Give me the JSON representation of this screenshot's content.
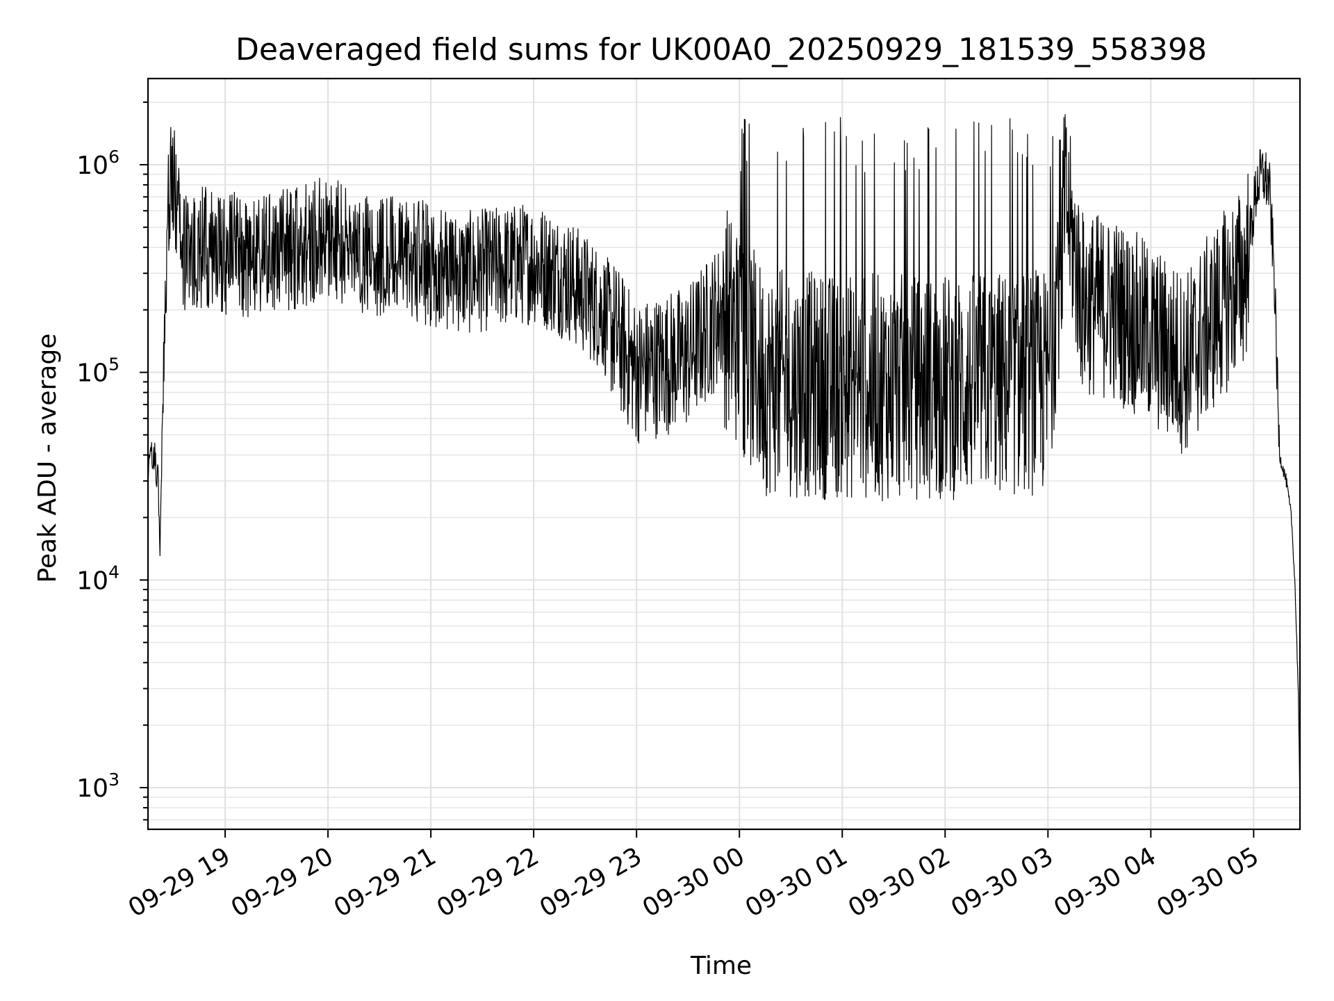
{
  "chart_data": {
    "type": "line",
    "title": "Deaveraged field sums for UK00A0_20250929_181539_558398",
    "xlabel": "Time",
    "ylabel": "Peak ADU - average",
    "yscale": "log",
    "xlim": [
      "2025-09-29 18:15",
      "2025-09-30 05:27"
    ],
    "ylim": [
      630,
      2600000
    ],
    "grid": "on (major and minor)",
    "legend": "none",
    "x_ticks": [
      {
        "t": "2025-09-29 19:00",
        "label": "09-29 19"
      },
      {
        "t": "2025-09-29 20:00",
        "label": "09-29 20"
      },
      {
        "t": "2025-09-29 21:00",
        "label": "09-29 21"
      },
      {
        "t": "2025-09-29 22:00",
        "label": "09-29 22"
      },
      {
        "t": "2025-09-29 23:00",
        "label": "09-29 23"
      },
      {
        "t": "2025-09-30 00:00",
        "label": "09-30 00"
      },
      {
        "t": "2025-09-30 01:00",
        "label": "09-30 01"
      },
      {
        "t": "2025-09-30 02:00",
        "label": "09-30 02"
      },
      {
        "t": "2025-09-30 03:00",
        "label": "09-30 03"
      },
      {
        "t": "2025-09-30 04:00",
        "label": "09-30 04"
      },
      {
        "t": "2025-09-30 05:00",
        "label": "09-30 05"
      }
    ],
    "y_ticks": [
      {
        "value": 1000,
        "base": "10",
        "exp": "3"
      },
      {
        "value": 10000,
        "base": "10",
        "exp": "4"
      },
      {
        "value": 100000,
        "base": "10",
        "exp": "5"
      },
      {
        "value": 1000000,
        "base": "10",
        "exp": "6"
      }
    ],
    "series": [
      {
        "color": "#000000",
        "points": [
          [
            "2025-09-29 18:15",
            35000
          ],
          [
            "2025-09-29 18:17",
            40000
          ],
          [
            "2025-09-29 18:19",
            38000
          ],
          [
            "2025-09-29 18:21",
            30000
          ],
          [
            "2025-09-29 18:22",
            15000
          ],
          [
            "2025-09-29 18:23",
            40000
          ],
          [
            "2025-09-29 18:24",
            80000
          ],
          [
            "2025-09-29 18:26",
            300000
          ],
          [
            "2025-09-29 18:27",
            750000
          ],
          [
            "2025-09-29 18:29",
            900000
          ],
          [
            "2025-09-29 18:31",
            700000
          ],
          [
            "2025-09-29 18:33",
            500000
          ],
          [
            "2025-09-29 18:36",
            350000
          ],
          [
            "2025-09-29 18:40",
            380000
          ],
          [
            "2025-09-29 18:45",
            400000
          ],
          [
            "2025-09-29 19:00",
            380000
          ],
          [
            "2025-09-29 19:20",
            350000
          ],
          [
            "2025-09-29 19:40",
            400000
          ],
          [
            "2025-09-29 20:00",
            450000
          ],
          [
            "2025-09-29 20:20",
            380000
          ],
          [
            "2025-09-29 20:40",
            360000
          ],
          [
            "2025-09-29 21:00",
            330000
          ],
          [
            "2025-09-29 21:20",
            300000
          ],
          [
            "2025-09-29 21:40",
            320000
          ],
          [
            "2025-09-29 22:00",
            340000
          ],
          [
            "2025-09-29 22:20",
            280000
          ],
          [
            "2025-09-29 22:40",
            200000
          ],
          [
            "2025-09-29 23:00",
            100000
          ],
          [
            "2025-09-29 23:30",
            120000
          ],
          [
            "2025-09-29 23:50",
            200000
          ],
          [
            "2025-09-30 00:15",
            90000
          ],
          [
            "2025-09-30 01:00",
            85000
          ],
          [
            "2025-09-30 02:00",
            85000
          ],
          [
            "2025-09-30 03:00",
            90000
          ],
          [
            "2025-09-30 03:10",
            700000
          ],
          [
            "2025-09-30 03:20",
            220000
          ],
          [
            "2025-09-30 03:40",
            200000
          ],
          [
            "2025-09-30 04:00",
            150000
          ],
          [
            "2025-09-30 04:20",
            110000
          ],
          [
            "2025-09-30 04:40",
            200000
          ],
          [
            "2025-09-30 04:55",
            300000
          ],
          [
            "2025-09-30 05:02",
            800000
          ],
          [
            "2025-09-30 05:05",
            900000
          ],
          [
            "2025-09-30 05:09",
            800000
          ],
          [
            "2025-09-30 05:12",
            300000
          ],
          [
            "2025-09-30 05:15",
            40000
          ],
          [
            "2025-09-30 05:19",
            30000
          ],
          [
            "2025-09-30 05:22",
            20000
          ],
          [
            "2025-09-30 05:24",
            10000
          ],
          [
            "2025-09-30 05:26",
            3000
          ],
          [
            "2025-09-30 05:27",
            800
          ]
        ]
      }
    ]
  }
}
